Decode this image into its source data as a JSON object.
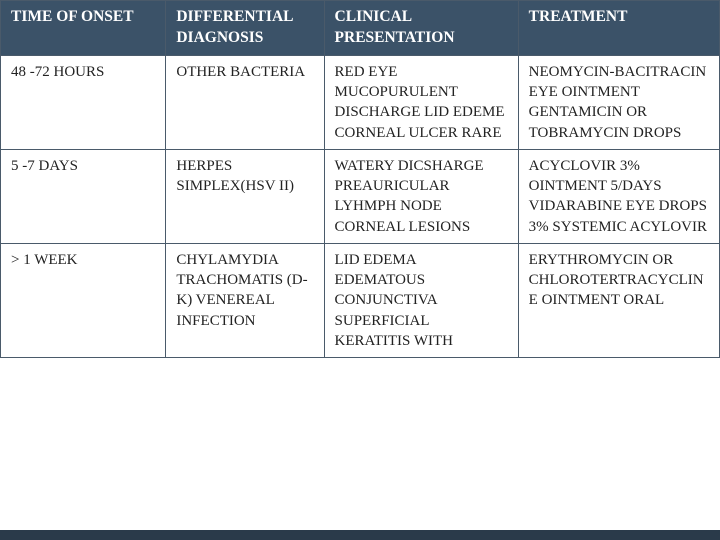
{
  "table": {
    "type": "table",
    "header_bg": "#3b5268",
    "header_fg": "#ffffff",
    "cell_bg": "#ffffff",
    "cell_fg": "#222222",
    "border_color": "#4a5a6a",
    "font_family": "Georgia, serif",
    "header_fontsize_pt": 12,
    "body_fontsize_pt": 11,
    "column_widths_pct": [
      23,
      22,
      27,
      28
    ],
    "columns": [
      "TIME OF ONSET",
      "DIFFERENTIAL DIAGNOSIS",
      "CLINICAL PRESENTATION",
      "TREATMENT"
    ],
    "rows": [
      [
        "48 -72 HOURS",
        "OTHER BACTERIA",
        "RED EYE MUCOPURULENT DISCHARGE LID EDEME CORNEAL ULCER RARE",
        "NEOMYCIN-BACITRACIN EYE OINTMENT GENTAMICIN OR TOBRAMYCIN DROPS"
      ],
      [
        "5 -7 DAYS",
        "HERPES SIMPLEX(HSV II)",
        "WATERY DICSHARGE PREAURICULAR LYHMPH NODE CORNEAL LESIONS",
        "ACYCLOVIR 3% OINTMENT 5/DAYS VIDARABINE EYE DROPS 3% SYSTEMIC ACYLOVIR"
      ],
      [
        "> 1 WEEK",
        "CHYLAMYDIA TRACHOMATIS (D-K) VENEREAL INFECTION",
        "LID EDEMA EDEMATOUS CONJUNCTIVA SUPERFICIAL KERATITIS WITH",
        "ERYTHROMYCIN OR CHLOROTERTRACYCLINE OINTMENT ORAL"
      ]
    ]
  },
  "footer_bar_color": "#2a3a4a"
}
